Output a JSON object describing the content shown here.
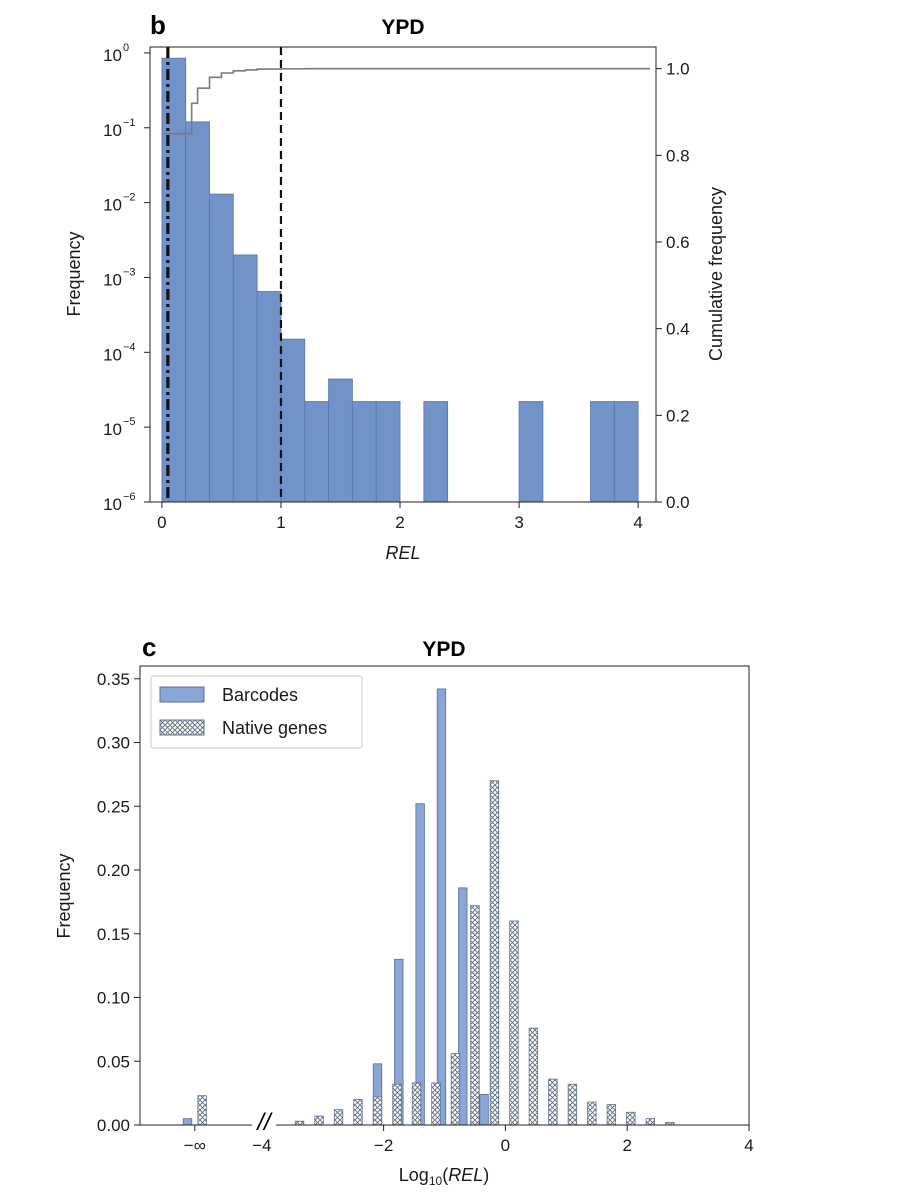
{
  "chart_data": [
    {
      "panel": "b",
      "type": "bar",
      "title": "YPD",
      "xlabel": "REL",
      "ylabel": "Frequency",
      "y2label": "Cumulative frequency",
      "yscale": "log",
      "xlim": [
        -0.1,
        4.15
      ],
      "ylim": [
        1e-06,
        1.2
      ],
      "y2lim": [
        0,
        1.05
      ],
      "xticks": [
        "0",
        "1",
        "2",
        "3",
        "4"
      ],
      "yticks": [
        {
          "base": "10",
          "exp": "0"
        },
        {
          "base": "10",
          "exp": "−1"
        },
        {
          "base": "10",
          "exp": "−2"
        },
        {
          "base": "10",
          "exp": "−3"
        },
        {
          "base": "10",
          "exp": "−4"
        },
        {
          "base": "10",
          "exp": "−5"
        },
        {
          "base": "10",
          "exp": "−6"
        }
      ],
      "y2ticks": [
        "0.0",
        "0.2",
        "0.4",
        "0.6",
        "0.8",
        "1.0"
      ],
      "bin_width": 0.2,
      "bin_starts": [
        0.0,
        0.2,
        0.4,
        0.6,
        0.8,
        1.0,
        1.2,
        1.4,
        1.6,
        1.8,
        2.0,
        2.2,
        2.4,
        2.6,
        2.8,
        3.0,
        3.2,
        3.4,
        3.6,
        3.8
      ],
      "values": [
        0.85,
        0.12,
        0.013,
        0.002,
        0.00065,
        0.00015,
        2.2e-05,
        4.4e-05,
        2.2e-05,
        2.2e-05,
        0,
        2.2e-05,
        0,
        0,
        0,
        2.2e-05,
        0,
        0,
        2.2e-05,
        2.2e-05
      ],
      "cumulative": {
        "x": [
          0.0,
          0.2,
          0.25,
          0.3,
          0.4,
          0.5,
          0.6,
          0.7,
          0.8,
          1.0,
          1.2,
          4.1
        ],
        "y": [
          0.85,
          0.85,
          0.92,
          0.955,
          0.98,
          0.99,
          0.995,
          0.997,
          0.999,
          0.9995,
          1.0,
          1.0
        ]
      },
      "vlines": [
        {
          "x": 0.05,
          "style": "dash-dot"
        },
        {
          "x": 1.0,
          "style": "dashed"
        }
      ],
      "colors": {
        "bars": "#7293c7",
        "bar_edge": "#5676a8",
        "cumulative": "#7a7a7a",
        "lines": "#111111"
      }
    },
    {
      "panel": "c",
      "type": "bar",
      "title": "YPD",
      "xlabel_prefix": "Log",
      "xlabel_sub": "10",
      "xlabel_open": "(",
      "xlabel_italic": "REL",
      "xlabel_close": ")",
      "ylabel": "Frequency",
      "xlim": [
        -6,
        4
      ],
      "ylim": [
        0,
        0.36
      ],
      "xticks": [
        "−∞",
        "−4",
        "−2",
        "0",
        "2",
        "4"
      ],
      "yticks": [
        "0.00",
        "0.05",
        "0.10",
        "0.15",
        "0.20",
        "0.25",
        "0.30",
        "0.35"
      ],
      "break_symbol": "//",
      "legend_position": "top-left",
      "series": [
        {
          "name": "Barcodes",
          "pattern": "solid",
          "x": [
            -2.1,
            -1.75,
            -1.4,
            -1.05,
            -0.7,
            -0.35
          ],
          "values": [
            0.048,
            0.13,
            0.252,
            0.342,
            0.186,
            0.024
          ]
        },
        {
          "name": "Native genes",
          "pattern": "crosshatch",
          "x": [
            -3.38,
            -3.06,
            -2.74,
            -2.42,
            -2.1,
            -1.78,
            -1.46,
            -1.14,
            -0.82,
            -0.5,
            -0.18,
            0.14,
            0.46,
            0.78,
            1.1,
            1.42,
            1.74,
            2.06,
            2.38,
            2.7
          ],
          "values": [
            0.003,
            0.007,
            0.012,
            0.02,
            0.022,
            0.032,
            0.033,
            0.033,
            0.056,
            0.172,
            0.27,
            0.16,
            0.076,
            0.036,
            0.032,
            0.018,
            0.016,
            0.01,
            0.005,
            0.002
          ]
        }
      ],
      "neg_inf_bars": [
        {
          "series": "Barcodes",
          "value": 0.005
        },
        {
          "series": "Native genes",
          "value": 0.023
        }
      ],
      "colors": {
        "bars": "#8aa6d6",
        "bar_edge": "#5c6f8f",
        "hatch": "#606c7c"
      }
    }
  ]
}
